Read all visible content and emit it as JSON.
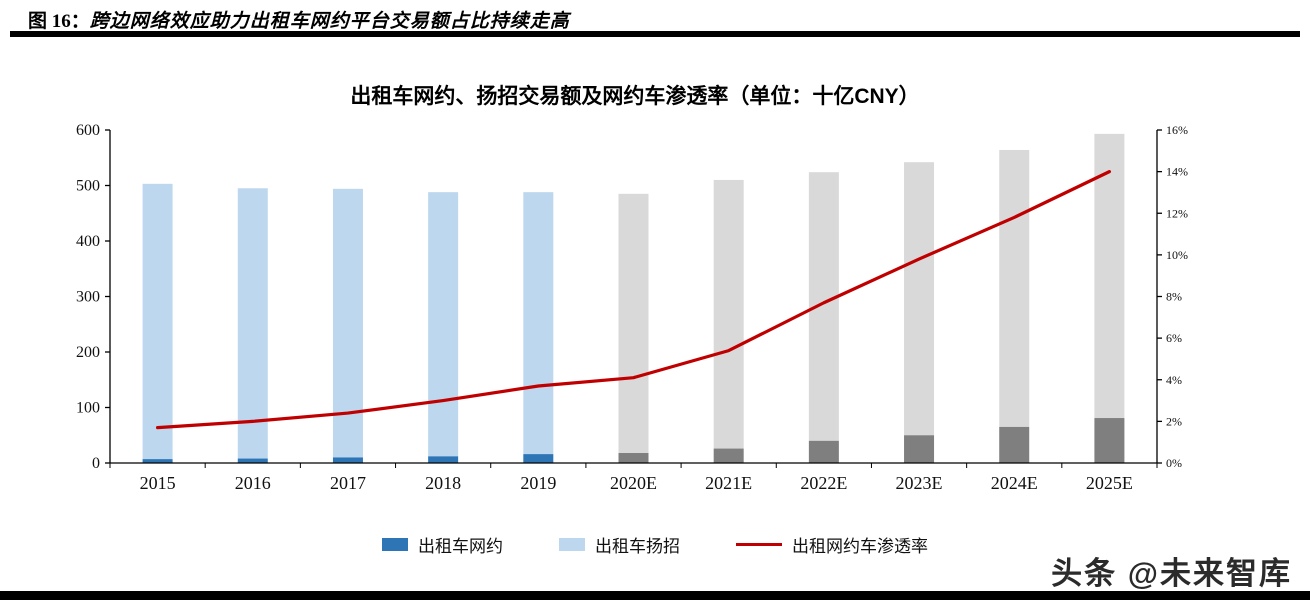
{
  "header": {
    "figure_label": "图 16：",
    "title": "跨边网络效应助力出租车网约平台交易额占比持续走高"
  },
  "chart_data": {
    "type": "bar+line",
    "title": "出租车网约、扬招交易额及网约车渗透率（单位：十亿CNY）",
    "categories": [
      "2015",
      "2016",
      "2017",
      "2018",
      "2019",
      "2020E",
      "2021E",
      "2022E",
      "2023E",
      "2024E",
      "2025E"
    ],
    "series": [
      {
        "name": "出租车网约",
        "type": "bar",
        "stack": "total",
        "axis": "left",
        "values": [
          7,
          8,
          10,
          12,
          16,
          18,
          26,
          40,
          50,
          65,
          81
        ]
      },
      {
        "name": "出租车扬招",
        "type": "bar",
        "stack": "total",
        "axis": "left",
        "values": [
          496,
          487,
          484,
          476,
          472,
          467,
          484,
          484,
          492,
          499,
          512
        ]
      },
      {
        "name": "出租网约车渗透率",
        "type": "line",
        "axis": "right",
        "values": [
          1.7,
          2.0,
          2.4,
          3.0,
          3.7,
          4.1,
          5.4,
          7.7,
          9.8,
          11.8,
          14.0
        ]
      }
    ],
    "left_axis": {
      "min": 0,
      "max": 600,
      "step": 100
    },
    "right_axis": {
      "min": 0,
      "max": 16,
      "step": 2,
      "suffix": "%"
    },
    "forecast_start_index": 5,
    "colors": {
      "bar_bottom_hist": "#2e75b6",
      "bar_top_hist": "#bdd7ee",
      "bar_bottom_forecast": "#7f7f7f",
      "bar_top_forecast": "#d9d9d9",
      "line": "#c00000",
      "axis": "#000000"
    },
    "grid": false,
    "legend_position": "bottom"
  },
  "legend": [
    {
      "label": "出租车网约"
    },
    {
      "label": "出租车扬招"
    },
    {
      "label": "出租网约车渗透率"
    }
  ],
  "watermark": {
    "text": "头条 @未来智库"
  }
}
